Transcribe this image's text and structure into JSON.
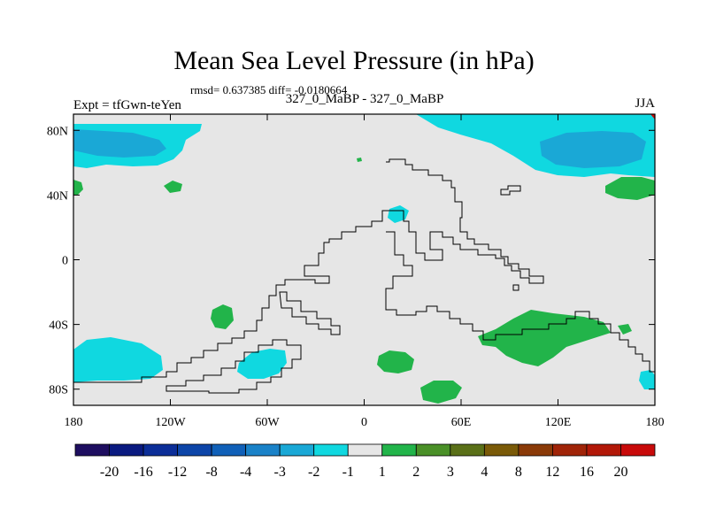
{
  "chart_data": {
    "type": "heatmap",
    "title": "Mean Sea Level Pressure (in hPa)",
    "stats": "rmsd= 0.637385 diff= -0.0180664",
    "left_label": "Expt = tfGwn-teYen",
    "center_label": "327_0_MaBP - 327_0_MaBP",
    "right_label": "JJA",
    "x_ticks": [
      "180",
      "120W",
      "60W",
      "0",
      "60E",
      "120E",
      "180"
    ],
    "x_tick_values": [
      -180,
      -120,
      -60,
      0,
      60,
      120,
      180
    ],
    "y_ticks": [
      "80N",
      "40N",
      "0",
      "40S",
      "80S"
    ],
    "y_tick_values": [
      80,
      40,
      0,
      -40,
      -80
    ],
    "xlim": [
      -180,
      180
    ],
    "ylim": [
      -90,
      90
    ],
    "colorbar_levels": [
      "-20",
      "-16",
      "-12",
      "-8",
      "-4",
      "-3",
      "-2",
      "-1",
      "1",
      "2",
      "3",
      "4",
      "8",
      "12",
      "16",
      "20"
    ],
    "colorbar_colors": [
      "#1e0e60",
      "#0a1a80",
      "#0c2e98",
      "#0d45a8",
      "#1060b8",
      "#1a82c8",
      "#1aa8d6",
      "#10d8e0",
      "#e6e6e6",
      "#22b44a",
      "#4a9028",
      "#5a7018",
      "#7a5a08",
      "#8a3a08",
      "#a02408",
      "#b21808",
      "#c80a0a"
    ],
    "background_color": "#e6e6e6",
    "regions": [
      {
        "label": "-3 to -2 (NW Pacific, north)",
        "level": "-3",
        "color": "#1aa8d6",
        "lat": 72,
        "lon": -150
      },
      {
        "label": "-2 to -1 (N Pacific / Bering)",
        "level": "-2",
        "color": "#10d8e0",
        "lat": 72,
        "lon": -140
      },
      {
        "label": "-3 to -2 (Siberia / Arctic)",
        "level": "-3",
        "color": "#1aa8d6",
        "lat": 68,
        "lon": 130
      },
      {
        "label": "-2 to -1 (Siberia / Arctic)",
        "level": "-2",
        "color": "#10d8e0",
        "lat": 72,
        "lon": 110
      },
      {
        "label": "-2 to -1 (Mediterranean)",
        "level": "-2",
        "color": "#10d8e0",
        "lat": 30,
        "lon": 18
      },
      {
        "label": "-2 to -1 (South Pacific)",
        "level": "-2",
        "color": "#10d8e0",
        "lat": -62,
        "lon": -160
      },
      {
        "label": "-2 to -1 (South Atlantic)",
        "level": "-2",
        "color": "#10d8e0",
        "lat": -65,
        "lon": -70
      },
      {
        "label": "1 to 2 (Indian Ocean / Australia)",
        "level": "1",
        "color": "#22b44a",
        "lat": -45,
        "lon": 100
      },
      {
        "label": "1 to 2 (SE Atlantic)",
        "level": "1",
        "color": "#22b44a",
        "lat": -62,
        "lon": 20
      },
      {
        "label": "1 to 2 (S Africa)",
        "level": "1",
        "color": "#22b44a",
        "lat": -78,
        "lon": 45
      },
      {
        "label": "1 to 2 (SE Pacific)",
        "level": "1",
        "color": "#22b44a",
        "lat": -32,
        "lon": -75
      },
      {
        "label": "1 to 2 (N Pacific E)",
        "level": "1",
        "color": "#22b44a",
        "lat": 45,
        "lon": 150
      },
      {
        "label": "1 to 2 (N Atlantic)",
        "level": "1",
        "color": "#22b44a",
        "lat": 45,
        "lon": -103
      }
    ]
  }
}
